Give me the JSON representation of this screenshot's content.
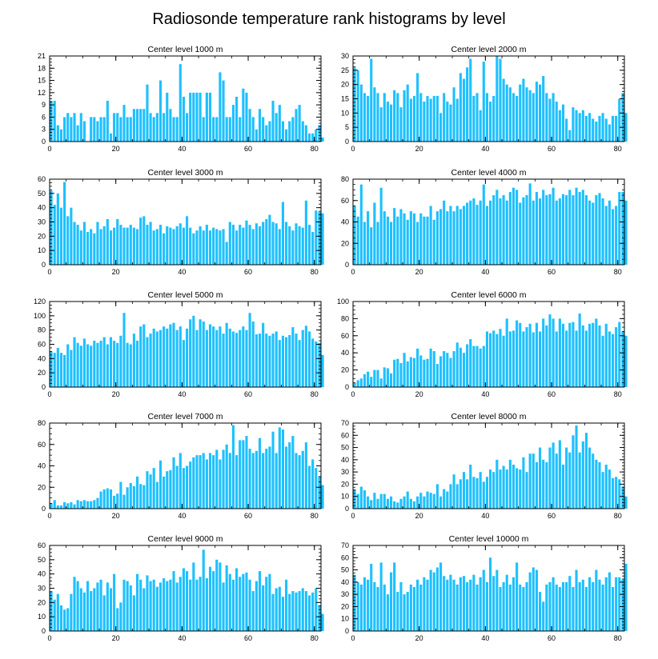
{
  "figure": {
    "title": "Radiosonde temperature rank histograms by level",
    "bar_color": "#1ec0ff",
    "axis_color": "#000000"
  },
  "chart_data": [
    {
      "type": "bar",
      "title": "Center level 1000 m",
      "xlim": [
        0,
        82
      ],
      "ylim": [
        0,
        21
      ],
      "xticks": [
        0,
        20,
        40,
        60,
        80
      ],
      "yticks": [
        0,
        3,
        6,
        9,
        12,
        15,
        18,
        21
      ],
      "values": [
        10,
        10,
        4,
        3,
        6,
        7,
        6,
        7,
        4,
        7,
        5,
        0,
        6,
        6,
        5,
        6,
        6,
        10,
        2,
        7,
        7,
        6,
        9,
        6,
        6,
        8,
        8,
        8,
        8,
        14,
        7,
        6,
        7,
        15,
        7,
        12,
        8,
        6,
        6,
        19,
        11,
        7,
        12,
        12,
        12,
        12,
        6,
        12,
        12,
        6,
        6,
        17,
        15,
        6,
        6,
        9,
        11,
        6,
        13,
        12,
        8,
        6,
        3,
        8,
        6,
        4,
        5,
        10,
        7,
        9,
        5,
        3,
        5,
        6,
        8,
        9,
        5,
        4,
        2,
        2,
        3,
        4,
        1
      ]
    },
    {
      "type": "bar",
      "title": "Center level 2000 m",
      "xlim": [
        0,
        82
      ],
      "ylim": [
        0,
        30
      ],
      "xticks": [
        0,
        20,
        40,
        60,
        80
      ],
      "yticks": [
        0,
        5,
        10,
        15,
        20,
        25,
        30
      ],
      "values": [
        26,
        25,
        20,
        17,
        16,
        29,
        19,
        17,
        12,
        17,
        14,
        13,
        18,
        17,
        12,
        18,
        20,
        15,
        16,
        24,
        17,
        14,
        16,
        15,
        16,
        16,
        10,
        17,
        14,
        13,
        19,
        15,
        24,
        22,
        26,
        29,
        16,
        17,
        11,
        28,
        17,
        14,
        16,
        30,
        29,
        22,
        20,
        19,
        17,
        16,
        20,
        22,
        19,
        18,
        17,
        21,
        20,
        23,
        17,
        15,
        17,
        14,
        11,
        13,
        8,
        4,
        12,
        11,
        10,
        11,
        9,
        10,
        8,
        7,
        9,
        10,
        8,
        6,
        9,
        9,
        15,
        17,
        10
      ]
    },
    {
      "type": "bar",
      "title": "Center level 3000 m",
      "xlim": [
        0,
        82
      ],
      "ylim": [
        0,
        60
      ],
      "xticks": [
        0,
        20,
        40,
        60,
        80
      ],
      "yticks": [
        0,
        10,
        20,
        30,
        40,
        50,
        60
      ],
      "values": [
        52,
        42,
        50,
        40,
        58,
        34,
        40,
        30,
        28,
        24,
        30,
        23,
        25,
        22,
        30,
        25,
        27,
        32,
        24,
        26,
        32,
        28,
        26,
        26,
        28,
        26,
        25,
        33,
        34,
        28,
        30,
        24,
        25,
        28,
        22,
        27,
        26,
        25,
        27,
        29,
        26,
        34,
        26,
        22,
        24,
        27,
        24,
        28,
        24,
        26,
        25,
        24,
        25,
        16,
        30,
        28,
        24,
        28,
        26,
        31,
        28,
        25,
        29,
        27,
        30,
        32,
        35,
        30,
        29,
        25,
        44,
        30,
        27,
        24,
        29,
        27,
        26,
        45,
        28,
        23,
        38,
        37,
        36
      ]
    },
    {
      "type": "bar",
      "title": "Center level 4000 m",
      "xlim": [
        0,
        82
      ],
      "ylim": [
        0,
        80
      ],
      "xticks": [
        0,
        20,
        40,
        60,
        80
      ],
      "yticks": [
        0,
        20,
        40,
        60,
        80
      ],
      "values": [
        55,
        45,
        75,
        40,
        50,
        35,
        58,
        40,
        72,
        50,
        45,
        40,
        53,
        45,
        52,
        48,
        42,
        50,
        48,
        40,
        48,
        45,
        45,
        55,
        42,
        50,
        52,
        60,
        50,
        55,
        50,
        55,
        52,
        55,
        58,
        60,
        62,
        56,
        60,
        75,
        55,
        60,
        65,
        70,
        62,
        65,
        60,
        68,
        72,
        70,
        58,
        63,
        65,
        76,
        60,
        68,
        62,
        70,
        65,
        66,
        72,
        60,
        62,
        66,
        65,
        70,
        65,
        72,
        68,
        70,
        65,
        60,
        58,
        65,
        67,
        62,
        55,
        60,
        52,
        55,
        68,
        68,
        60
      ]
    },
    {
      "type": "bar",
      "title": "Center level 5000 m",
      "xlim": [
        0,
        82
      ],
      "ylim": [
        0,
        120
      ],
      "xticks": [
        0,
        20,
        40,
        60,
        80
      ],
      "yticks": [
        0,
        20,
        40,
        60,
        80,
        100,
        120
      ],
      "values": [
        50,
        48,
        55,
        48,
        45,
        60,
        52,
        70,
        62,
        58,
        68,
        60,
        58,
        65,
        62,
        65,
        70,
        60,
        70,
        65,
        62,
        72,
        104,
        62,
        60,
        75,
        65,
        85,
        88,
        70,
        75,
        82,
        78,
        80,
        85,
        82,
        88,
        90,
        80,
        85,
        66,
        82,
        95,
        100,
        80,
        95,
        92,
        80,
        88,
        85,
        80,
        85,
        75,
        90,
        82,
        78,
        76,
        80,
        85,
        80,
        104,
        92,
        74,
        75,
        90,
        75,
        72,
        75,
        78,
        66,
        72,
        70,
        73,
        84,
        75,
        66,
        80,
        86,
        78,
        68,
        64,
        62,
        45
      ]
    },
    {
      "type": "bar",
      "title": "Center level 6000 m",
      "xlim": [
        0,
        82
      ],
      "ylim": [
        0,
        100
      ],
      "xticks": [
        0,
        20,
        40,
        60,
        80
      ],
      "yticks": [
        0,
        20,
        40,
        60,
        80,
        100
      ],
      "values": [
        5,
        8,
        10,
        15,
        18,
        12,
        20,
        20,
        10,
        23,
        22,
        16,
        32,
        33,
        28,
        40,
        30,
        35,
        34,
        45,
        37,
        32,
        33,
        45,
        42,
        27,
        36,
        42,
        40,
        34,
        42,
        52,
        46,
        40,
        50,
        56,
        48,
        48,
        45,
        48,
        65,
        63,
        66,
        62,
        68,
        60,
        80,
        65,
        66,
        78,
        75,
        65,
        70,
        74,
        64,
        75,
        65,
        80,
        72,
        85,
        80,
        65,
        80,
        74,
        66,
        75,
        76,
        66,
        86,
        72,
        66,
        74,
        75,
        80,
        72,
        60,
        74,
        65,
        62,
        70,
        76,
        65,
        60
      ]
    },
    {
      "type": "bar",
      "title": "Center level 7000 m",
      "xlim": [
        0,
        82
      ],
      "ylim": [
        0,
        80
      ],
      "xticks": [
        0,
        20,
        40,
        60,
        80
      ],
      "yticks": [
        0,
        20,
        40,
        60,
        80
      ],
      "values": [
        5,
        8,
        3,
        3,
        6,
        5,
        6,
        4,
        8,
        7,
        8,
        7,
        7,
        8,
        10,
        16,
        18,
        19,
        18,
        12,
        14,
        25,
        13,
        20,
        24,
        21,
        30,
        23,
        22,
        35,
        32,
        38,
        25,
        45,
        30,
        35,
        36,
        48,
        40,
        52,
        38,
        40,
        44,
        48,
        50,
        50,
        52,
        46,
        52,
        50,
        55,
        46,
        55,
        60,
        52,
        78,
        50,
        64,
        64,
        68,
        56,
        52,
        54,
        66,
        52,
        56,
        58,
        72,
        52,
        76,
        74,
        58,
        62,
        68,
        52,
        50,
        54,
        62,
        40,
        46,
        38,
        30,
        22
      ]
    },
    {
      "type": "bar",
      "title": "Center level 8000 m",
      "xlim": [
        0,
        82
      ],
      "ylim": [
        0,
        70
      ],
      "xticks": [
        0,
        20,
        40,
        60,
        80
      ],
      "yticks": [
        0,
        10,
        20,
        30,
        40,
        50,
        60,
        70
      ],
      "values": [
        16,
        12,
        18,
        15,
        10,
        7,
        13,
        8,
        12,
        12,
        8,
        10,
        6,
        5,
        8,
        10,
        14,
        8,
        6,
        10,
        13,
        10,
        14,
        13,
        12,
        20,
        10,
        16,
        14,
        20,
        28,
        20,
        24,
        30,
        24,
        36,
        26,
        25,
        30,
        22,
        26,
        32,
        30,
        40,
        32,
        35,
        32,
        40,
        36,
        33,
        32,
        42,
        30,
        45,
        45,
        38,
        50,
        40,
        38,
        50,
        54,
        45,
        56,
        36,
        50,
        46,
        60,
        68,
        46,
        55,
        62,
        50,
        45,
        40,
        38,
        30,
        36,
        32,
        25,
        26,
        24,
        18,
        10
      ]
    },
    {
      "type": "bar",
      "title": "Center level 9000 m",
      "xlim": [
        0,
        82
      ],
      "ylim": [
        0,
        60
      ],
      "xticks": [
        0,
        20,
        40,
        60,
        80
      ],
      "yticks": [
        0,
        10,
        20,
        30,
        40,
        50,
        60
      ],
      "values": [
        28,
        22,
        26,
        18,
        15,
        16,
        26,
        38,
        35,
        30,
        27,
        35,
        28,
        30,
        34,
        36,
        25,
        34,
        30,
        40,
        16,
        20,
        36,
        35,
        32,
        25,
        40,
        36,
        30,
        39,
        35,
        36,
        31,
        34,
        37,
        35,
        36,
        42,
        34,
        38,
        44,
        42,
        36,
        48,
        36,
        38,
        57,
        37,
        45,
        42,
        50,
        48,
        34,
        46,
        40,
        36,
        44,
        38,
        40,
        41,
        36,
        28,
        35,
        42,
        32,
        38,
        40,
        26,
        30,
        31,
        24,
        36,
        26,
        28,
        27,
        28,
        30,
        28,
        25,
        27,
        30,
        18,
        12
      ]
    },
    {
      "type": "bar",
      "title": "Center level 10000 m",
      "xlim": [
        0,
        82
      ],
      "ylim": [
        0,
        70
      ],
      "xticks": [
        0,
        20,
        40,
        60,
        80
      ],
      "yticks": [
        0,
        10,
        20,
        30,
        40,
        50,
        60,
        70
      ],
      "values": [
        46,
        40,
        38,
        44,
        42,
        55,
        40,
        36,
        56,
        38,
        30,
        48,
        56,
        32,
        40,
        30,
        32,
        38,
        36,
        42,
        38,
        44,
        42,
        50,
        48,
        52,
        56,
        45,
        42,
        46,
        42,
        38,
        44,
        45,
        40,
        42,
        46,
        38,
        44,
        50,
        40,
        60,
        45,
        50,
        36,
        40,
        46,
        38,
        44,
        56,
        38,
        36,
        40,
        48,
        52,
        50,
        32,
        24,
        38,
        40,
        44,
        38,
        36,
        40,
        40,
        45,
        36,
        50,
        40,
        42,
        36,
        44,
        40,
        50,
        42,
        38,
        44,
        48,
        36,
        44,
        44,
        42,
        55
      ]
    }
  ]
}
